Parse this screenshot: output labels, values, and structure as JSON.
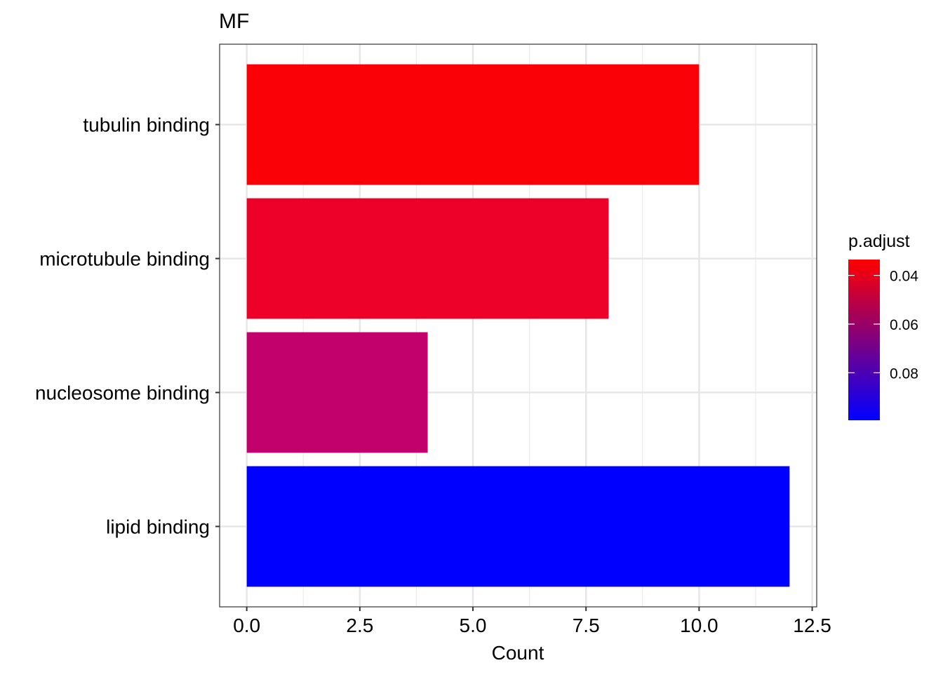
{
  "chart_data": {
    "type": "bar",
    "orientation": "horizontal",
    "title": "MF",
    "xlabel": "Count",
    "ylabel": "",
    "categories": [
      "tubulin binding",
      "microtubule binding",
      "nucleosome binding",
      "lipid binding"
    ],
    "values": [
      10,
      8,
      4,
      12
    ],
    "p_adjust": [
      0.035,
      0.045,
      0.065,
      0.095
    ],
    "bar_colors": [
      "#F90106",
      "#EE0129",
      "#C2016D",
      "#0000FF"
    ],
    "xlim": [
      -0.6,
      12.6
    ],
    "xticks": [
      0.0,
      2.5,
      5.0,
      7.5,
      10.0,
      12.5
    ],
    "xtick_labels": [
      "0.0",
      "2.5",
      "5.0",
      "7.5",
      "10.0",
      "12.5"
    ],
    "grid": true,
    "legend": {
      "title": "p.adjust",
      "position": "right",
      "type": "colorbar",
      "range": [
        0.0335,
        0.0995
      ],
      "ticks": [
        0.04,
        0.06,
        0.08
      ],
      "tick_labels": [
        "0.04",
        "0.06",
        "0.08"
      ],
      "low_color": "#FF0000",
      "high_color": "#0000FF"
    }
  }
}
